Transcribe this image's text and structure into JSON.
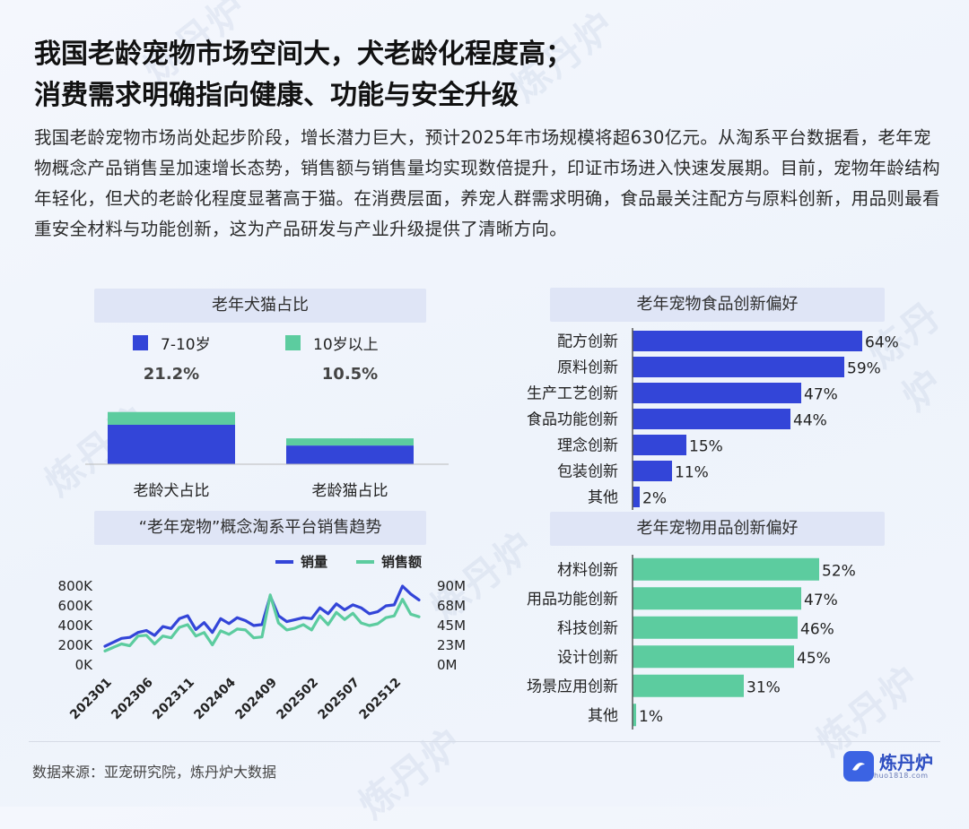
{
  "page": {
    "title_line1": "我国老龄宠物市场空间大，犬老龄化程度高；",
    "title_line2": "消费需求明确指向健康、功能与安全升级",
    "intro": "我国老龄宠物市场尚处起步阶段，增长潜力巨大，预计2025年市场规模将超630亿元。从淘系平台数据看，老年宠物概念产品销售呈加速增长态势，销售额与销售量均实现数倍提升，印证市场进入快速发展期。目前，宠物年龄结构年轻化，但犬的老龄化程度显著高于猫。在消费层面，养宠人群需求明确，食品最关注配方与原料创新，用品则最看重安全材料与功能创新，这为产品研发与产业升级提供了清晰方向。",
    "source": "数据来源：亚宠研究院，炼丹炉大数据",
    "logo_text": "炼丹炉",
    "logo_sub": "huo1818.com",
    "watermark": "炼丹炉"
  },
  "colors": {
    "blue": "#3345d8",
    "green": "#5ccc9f",
    "panel_title_bg": "#dfe5f6"
  },
  "chart_data": [
    {
      "type": "bar",
      "stacked": true,
      "title": "老年犬猫占比",
      "categories": [
        "老龄犬占比",
        "老龄猫占比"
      ],
      "totals": [
        "21.2%",
        "10.5%"
      ],
      "series": [
        {
          "name": "7-10岁",
          "values": [
            16.0,
            7.6
          ]
        },
        {
          "name": "10岁以上",
          "values": [
            5.2,
            2.9
          ]
        }
      ],
      "legend_position": "top"
    },
    {
      "type": "line",
      "title": "“老年宠物”概念淘系平台销售趋势",
      "x_ticks": [
        "202301",
        "202306",
        "202311",
        "202404",
        "202409",
        "202502",
        "202507",
        "202512"
      ],
      "y_left_ticks": [
        "800K",
        "600K",
        "400K",
        "200K",
        "0K"
      ],
      "y_right_ticks": [
        "90M",
        "68M",
        "45M",
        "23M",
        "0M"
      ],
      "y_left_range": [
        0,
        800000
      ],
      "y_right_range": [
        0,
        90000000
      ],
      "series": [
        {
          "name": "销量",
          "axis": "left",
          "values": [
            190000,
            230000,
            270000,
            280000,
            330000,
            350000,
            300000,
            390000,
            370000,
            470000,
            500000,
            360000,
            430000,
            330000,
            470000,
            420000,
            480000,
            450000,
            400000,
            410000,
            700000,
            500000,
            440000,
            460000,
            480000,
            470000,
            580000,
            520000,
            620000,
            560000,
            610000,
            580000,
            520000,
            540000,
            600000,
            610000,
            800000,
            720000,
            660000
          ]
        },
        {
          "name": "销售额",
          "axis": "right",
          "values": [
            16000000,
            20000000,
            24000000,
            22000000,
            33000000,
            34000000,
            24000000,
            33000000,
            31000000,
            43000000,
            46000000,
            33000000,
            37000000,
            23000000,
            39000000,
            35000000,
            41000000,
            40000000,
            31000000,
            32000000,
            80000000,
            48000000,
            40000000,
            42000000,
            46000000,
            40000000,
            56000000,
            46000000,
            60000000,
            52000000,
            59000000,
            48000000,
            45000000,
            47000000,
            54000000,
            56000000,
            75000000,
            58000000,
            55000000
          ]
        }
      ],
      "legend_position": "top-right"
    },
    {
      "type": "bar",
      "orientation": "horizontal",
      "title": "老年宠物食品创新偏好",
      "categories": [
        "配方创新",
        "原料创新",
        "生产工艺创新",
        "食品功能创新",
        "理念创新",
        "包装创新",
        "其他"
      ],
      "values": [
        64,
        59,
        47,
        44,
        15,
        11,
        2
      ],
      "labels": [
        "64%",
        "59%",
        "47%",
        "44%",
        "15%",
        "11%",
        "2%"
      ],
      "color": "#3345d8"
    },
    {
      "type": "bar",
      "orientation": "horizontal",
      "title": "老年宠物用品创新偏好",
      "categories": [
        "材料创新",
        "用品功能创新",
        "科技创新",
        "设计创新",
        "场景应用创新",
        "其他"
      ],
      "values": [
        52,
        47,
        46,
        45,
        31,
        1
      ],
      "labels": [
        "52%",
        "47%",
        "46%",
        "45%",
        "31%",
        "1%"
      ],
      "color": "#5ccc9f"
    }
  ]
}
